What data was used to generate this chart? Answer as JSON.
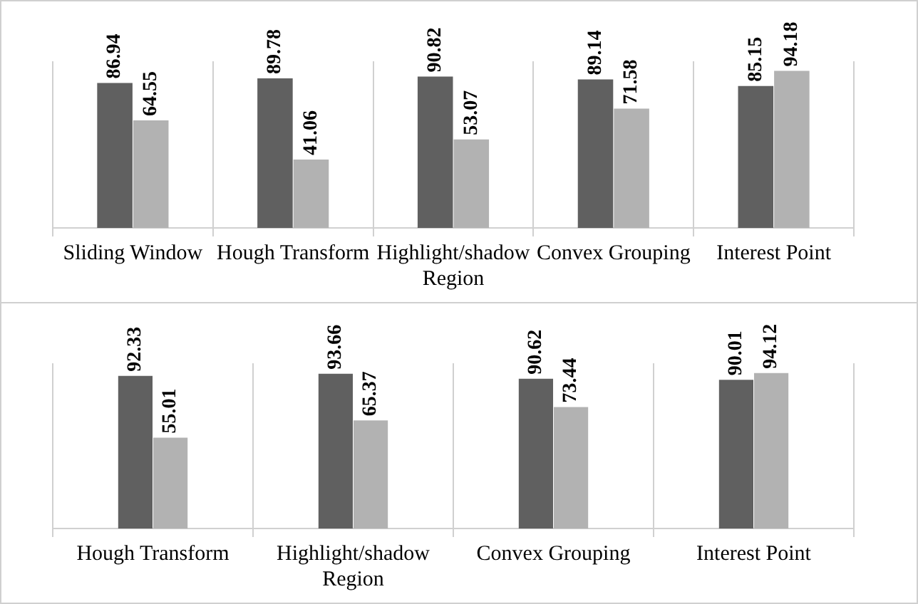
{
  "chart_data": [
    {
      "type": "bar",
      "categories": [
        "Sliding Window",
        "Hough Transform",
        "Highlight/shadow Region",
        "Convex Grouping",
        "Interest Point"
      ],
      "series": [
        {
          "color": "#606060",
          "values": [
            86.94,
            89.78,
            90.82,
            89.14,
            85.15
          ]
        },
        {
          "color": "#b2b2b2",
          "values": [
            64.55,
            41.06,
            53.07,
            71.58,
            94.18
          ]
        }
      ],
      "data_labels": true,
      "tick_labels": "x",
      "grid": "x",
      "legend": false
    },
    {
      "type": "bar",
      "categories": [
        "Hough Transform",
        "Highlight/shadow Region",
        "Convex Grouping",
        "Interest Point"
      ],
      "series": [
        {
          "color": "#606060",
          "values": [
            92.33,
            93.66,
            90.62,
            90.01
          ]
        },
        {
          "color": "#b2b2b2",
          "values": [
            55.01,
            65.37,
            73.44,
            94.12
          ]
        }
      ],
      "data_labels": true,
      "tick_labels": "x",
      "grid": "x",
      "legend": false
    }
  ]
}
